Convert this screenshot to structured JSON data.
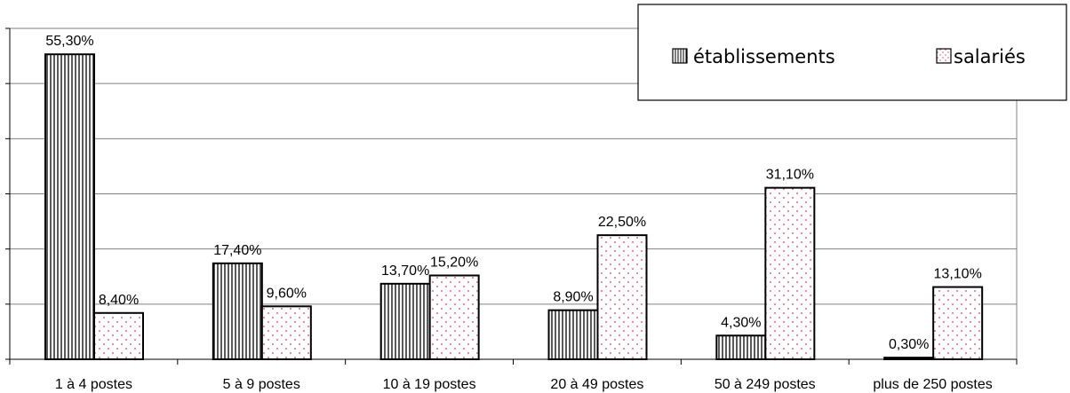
{
  "chart_data": {
    "type": "bar",
    "categories": [
      "1 à 4 postes",
      "5 à 9 postes",
      "10 à 19 postes",
      "20 à 49 postes",
      "50 à 249 postes",
      "plus de 250 postes"
    ],
    "series": [
      {
        "name": "établissements",
        "values": [
          55.3,
          17.4,
          13.7,
          8.9,
          4.3,
          0.3
        ],
        "labels": [
          "55,30%",
          "17,40%",
          "13,70%",
          "8,90%",
          "4,30%",
          "0,30%"
        ],
        "pattern": "vertical-stripes"
      },
      {
        "name": "salariés",
        "values": [
          8.4,
          9.6,
          15.2,
          22.5,
          31.1,
          13.1
        ],
        "labels": [
          "8,40%",
          "9,60%",
          "15,20%",
          "22,50%",
          "31,10%",
          "13,10%"
        ],
        "pattern": "red-dots"
      }
    ],
    "ylim": [
      0,
      60
    ],
    "grid": true,
    "legend_position": "top-right",
    "colors": {
      "bar_stroke": "#000000",
      "dot": "#d04060",
      "grid": "#808080"
    }
  }
}
